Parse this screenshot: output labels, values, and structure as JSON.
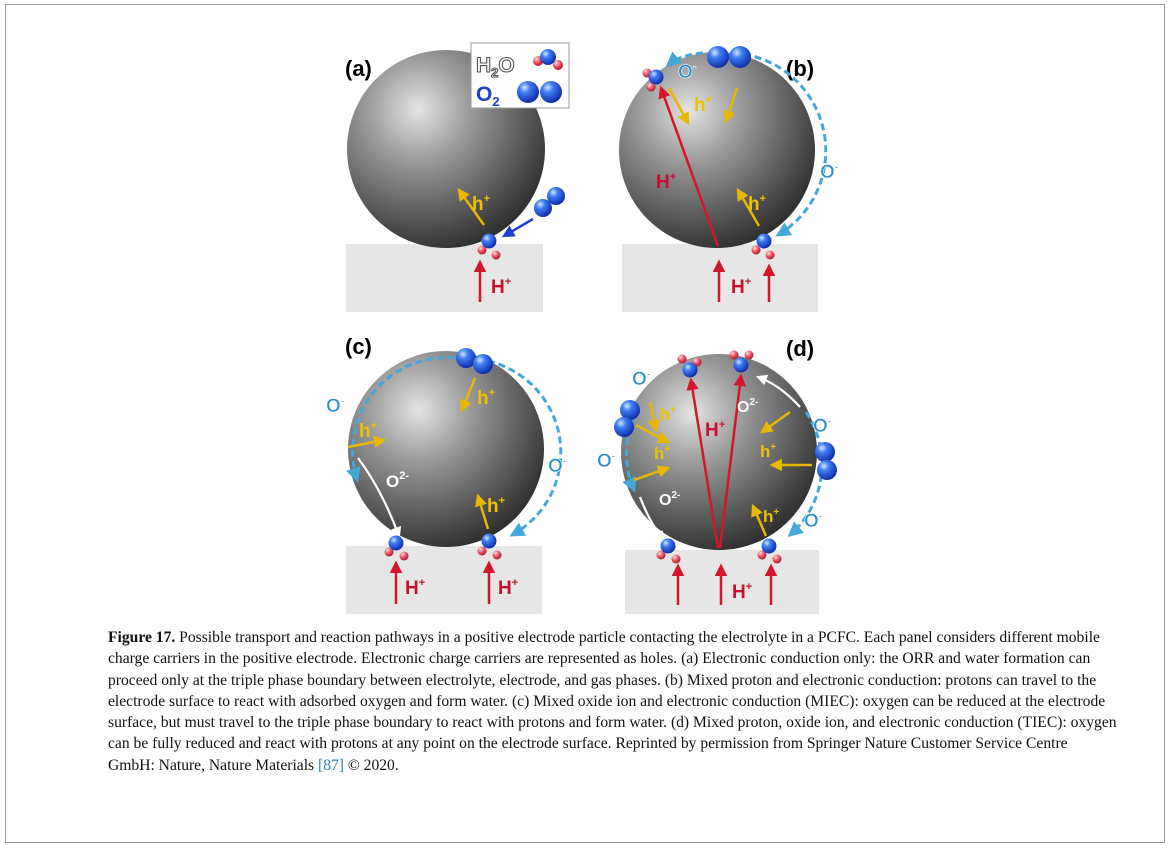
{
  "figure": {
    "panels": [
      {
        "label": "(a)"
      },
      {
        "label": "(b)"
      },
      {
        "label": "(c)"
      },
      {
        "label": "(d)"
      }
    ],
    "legend": {
      "water_main": "H",
      "water_sub": "2",
      "water_end": "O",
      "oxygen_main": "O",
      "oxygen_sub": "2"
    },
    "labels": {
      "hole_main": "h",
      "hole_sup": "+",
      "proton_main": "H",
      "proton_sup": "+",
      "oxygen_ion_main": "O",
      "oxygen_ion_sup": "-",
      "oxide_main": "O",
      "oxide_sup": "2-"
    },
    "colors": {
      "proton_arrow": "#d4162c",
      "hole_arrow": "#e8b800",
      "oxygen_arrow": "#43a8d8",
      "oxide_arrow": "#ffffff",
      "electrolyte": "#e6e6e6",
      "oxygen_atom": "#1f4fe0",
      "hydrogen_atom": "#f05a6a"
    }
  },
  "caption": {
    "label": "Figure 17.",
    "text_before_ref": " Possible transport and reaction pathways in a positive electrode particle contacting the electrolyte in a PCFC. Each panel considers different mobile charge carriers in the positive electrode. Electronic charge carriers are represented as holes. (a) Electronic conduction only: the ORR and water formation can proceed only at the triple phase boundary between electrolyte, electrode, and gas phases. (b) Mixed proton and electronic conduction: protons can travel to the electrode surface to react with adsorbed oxygen and form water. (c) Mixed oxide ion and electronic conduction (MIEC): oxygen can be reduced at the electrode surface, but must travel to the triple phase boundary to react with protons and form water. (d) Mixed proton, oxide ion, and electronic conduction (TIEC): oxygen can be fully reduced and react with protons at any point on the electrode surface. Reprinted by permission from Springer Nature Customer Service Centre GmbH: Nature, Nature Materials ",
    "ref": "[87]",
    "text_after_ref": " © 2020."
  }
}
